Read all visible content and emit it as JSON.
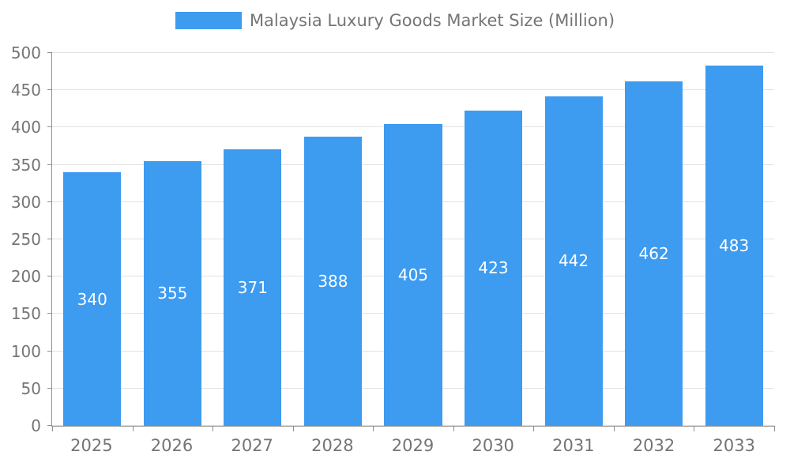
{
  "legend": {
    "label": "Malaysia Luxury Goods Market Size (Million)"
  },
  "colors": {
    "bar": "#3d9bf0",
    "axis_text": "#757575",
    "grid_line": "#e2e2e2",
    "axis_line": "#8f8f8f",
    "bar_label_text": "#ffffff"
  },
  "chart_data": {
    "type": "bar",
    "title": "Malaysia Luxury Goods Market Size (Million)",
    "categories": [
      "2025",
      "2026",
      "2027",
      "2028",
      "2029",
      "2030",
      "2031",
      "2032",
      "2033"
    ],
    "values": [
      340,
      355,
      371,
      388,
      405,
      423,
      442,
      462,
      483
    ],
    "xlabel": "",
    "ylabel": "",
    "ylim": [
      0,
      500
    ],
    "ytick_step": 50,
    "yticks": [
      0,
      50,
      100,
      150,
      200,
      250,
      300,
      350,
      400,
      450,
      500
    ],
    "grid": true,
    "legend_position": "top-center",
    "data_labels": "inside-middle"
  }
}
